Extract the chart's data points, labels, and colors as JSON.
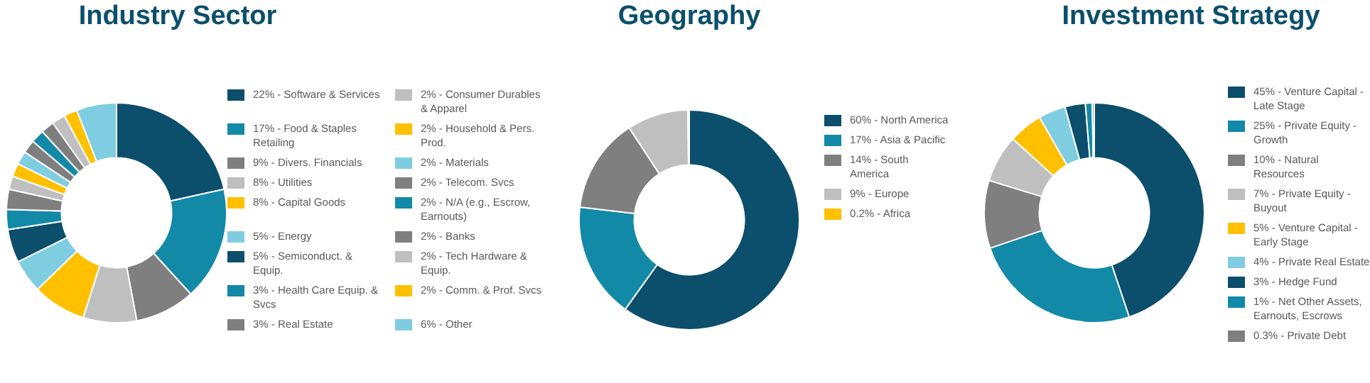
{
  "chart_data": [
    {
      "type": "donut",
      "title": "Industry Sector",
      "legend": "right",
      "categories": [
        "22% - Software & Services",
        "17% - Food & Staples Retailing",
        "9% - Divers. Financials",
        "8% - Utilities",
        "8% - Capital Goods",
        "5% - Energy",
        "5% - Semiconduct. & Equip.",
        "3% - Health Care Equip. & Svcs",
        "3% - Real Estate",
        "2% - Consumer Durables & Apparel",
        "2% - Household & Pers. Prod.",
        "2% - Materials",
        "2% - Telecom. Svcs",
        "2% - N/A (e.g., Escrow, Earnouts)",
        "2% - Banks",
        "2% - Tech Hardware & Equip.",
        "2% - Comm. & Prof. Svcs",
        "6% - Other"
      ],
      "values": [
        22,
        17,
        9,
        8,
        8,
        5,
        5,
        3,
        3,
        2,
        2,
        2,
        2,
        2,
        2,
        2,
        2,
        6
      ],
      "colors": [
        "#0b4f6c",
        "#1289a7",
        "#7f7f7f",
        "#bfbfbf",
        "#ffc000",
        "#7fcde0",
        "#0b4f6c",
        "#1289a7",
        "#7f7f7f",
        "#bfbfbf",
        "#ffc000",
        "#7fcde0",
        "#7f7f7f",
        "#1289a7",
        "#7f7f7f",
        "#bfbfbf",
        "#ffc000",
        "#7fcde0"
      ]
    },
    {
      "type": "donut",
      "title": "Geography",
      "legend": "right",
      "categories": [
        "60% - North America",
        "17% - Asia & Pacific",
        "14% - South America",
        "9% - Europe",
        "0.2% - Africa"
      ],
      "values": [
        60,
        17,
        14,
        9,
        0.2
      ],
      "colors": [
        "#0b4f6c",
        "#1289a7",
        "#7f7f7f",
        "#bfbfbf",
        "#ffc000"
      ]
    },
    {
      "type": "donut",
      "title": "Investment Strategy",
      "legend": "right",
      "categories": [
        "45% - Venture Capital - Late Stage",
        "25% - Private Equity - Growth",
        "10% - Natural Resources",
        "7% - Private Equity - Buyout",
        "5% - Venture Capital - Early Stage",
        "4% - Private Real Estate",
        "3% - Hedge Fund",
        "1% - Net Other Assets, Earnouts, Escrows",
        "0.3% - Private Debt"
      ],
      "values": [
        45,
        25,
        10,
        7,
        5,
        4,
        3,
        1,
        0.3
      ],
      "colors": [
        "#0b4f6c",
        "#1289a7",
        "#7f7f7f",
        "#bfbfbf",
        "#ffc000",
        "#7fcde0",
        "#0b4f6c",
        "#1289a7",
        "#7f7f7f"
      ]
    }
  ]
}
